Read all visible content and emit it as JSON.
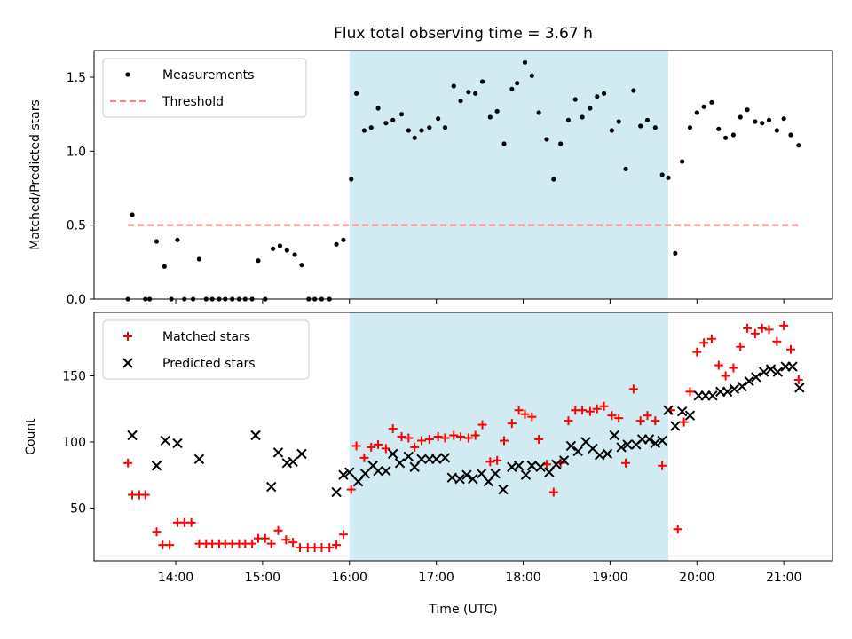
{
  "figure": {
    "title": "Flux total observing time = 3.67 h",
    "xlabel": "Time (UTC)",
    "xticks": [
      "14:00",
      "15:00",
      "16:00",
      "17:00",
      "18:00",
      "19:00",
      "20:00",
      "21:00"
    ],
    "colors": {
      "shade": "#add8e6",
      "matched": "#ff0000",
      "predicted": "#000000",
      "threshold": "#ff7f7f",
      "measurement": "#000000"
    }
  },
  "chart_data": [
    {
      "type": "scatter",
      "panel": "top",
      "ylabel": "Matched/Predicted stars",
      "ylim": [
        0,
        1.68
      ],
      "yticks": [
        "0.0",
        "0.5",
        "1.0",
        "1.5"
      ],
      "xlim": [
        13.06,
        21.56
      ],
      "shaded_interval": [
        16.0,
        19.67
      ],
      "legend": {
        "placement": "upper left",
        "entries": [
          "Measurements",
          "Threshold"
        ]
      },
      "threshold": {
        "value": 0.5,
        "x_start": 13.45,
        "x_end": 21.2
      },
      "series": [
        {
          "name": "Measurements",
          "x": [
            13.45,
            13.5,
            13.65,
            13.7,
            13.78,
            13.87,
            13.95,
            14.02,
            14.1,
            14.2,
            14.27,
            14.35,
            14.42,
            14.5,
            14.57,
            14.65,
            14.73,
            14.8,
            14.88,
            14.95,
            15.03,
            15.12,
            15.2,
            15.28,
            15.37,
            15.45,
            15.53,
            15.6,
            15.68,
            15.77,
            15.85,
            15.93,
            16.02,
            16.08,
            16.17,
            16.25,
            16.33,
            16.42,
            16.5,
            16.6,
            16.68,
            16.75,
            16.83,
            16.92,
            17.02,
            17.1,
            17.2,
            17.28,
            17.37,
            17.45,
            17.53,
            17.62,
            17.7,
            17.78,
            17.87,
            17.93,
            18.02,
            18.1,
            18.18,
            18.27,
            18.35,
            18.43,
            18.52,
            18.6,
            18.68,
            18.77,
            18.85,
            18.93,
            19.02,
            19.1,
            19.18,
            19.27,
            19.35,
            19.43,
            19.52,
            19.6,
            19.67,
            19.75,
            19.83,
            19.92,
            20.0,
            20.08,
            20.17,
            20.25,
            20.33,
            20.42,
            20.5,
            20.58,
            20.67,
            20.75,
            20.83,
            20.92,
            21.0,
            21.08,
            21.17
          ],
          "y": [
            0.0,
            0.57,
            0.0,
            0.0,
            0.39,
            0.22,
            0.0,
            0.4,
            0.0,
            0.0,
            0.27,
            0.0,
            0.0,
            0.0,
            0.0,
            0.0,
            0.0,
            0.0,
            0.0,
            0.26,
            0.0,
            0.34,
            0.36,
            0.33,
            0.3,
            0.23,
            0.0,
            0.0,
            0.0,
            0.0,
            0.37,
            0.4,
            0.81,
            1.39,
            1.14,
            1.16,
            1.29,
            1.19,
            1.21,
            1.25,
            1.14,
            1.09,
            1.14,
            1.16,
            1.22,
            1.16,
            1.44,
            1.34,
            1.4,
            1.39,
            1.47,
            1.23,
            1.27,
            1.05,
            1.42,
            1.46,
            1.6,
            1.51,
            1.26,
            1.08,
            0.81,
            1.05,
            1.21,
            1.35,
            1.23,
            1.29,
            1.37,
            1.39,
            1.14,
            1.2,
            0.88,
            1.41,
            1.17,
            1.21,
            1.16,
            0.84,
            0.82,
            0.31,
            0.93,
            1.16,
            1.26,
            1.3,
            1.33,
            1.15,
            1.09,
            1.11,
            1.23,
            1.28,
            1.2,
            1.19,
            1.21,
            1.14,
            1.22,
            1.11,
            1.04
          ]
        }
      ]
    },
    {
      "type": "scatter",
      "panel": "bottom",
      "ylabel": "Count",
      "ylim": [
        10,
        198
      ],
      "yticks": [
        "50",
        "100",
        "150"
      ],
      "xlim": [
        13.06,
        21.56
      ],
      "shaded_interval": [
        16.0,
        19.67
      ],
      "legend": {
        "placement": "upper left",
        "entries": [
          "Matched stars",
          "Predicted stars"
        ]
      },
      "series": [
        {
          "name": "Matched stars",
          "marker": "+",
          "x": [
            13.45,
            13.5,
            13.58,
            13.65,
            13.78,
            13.85,
            13.93,
            14.02,
            14.1,
            14.18,
            14.27,
            14.35,
            14.42,
            14.5,
            14.57,
            14.65,
            14.73,
            14.8,
            14.88,
            14.95,
            15.03,
            15.1,
            15.18,
            15.27,
            15.35,
            15.43,
            15.52,
            15.6,
            15.68,
            15.77,
            15.85,
            15.93,
            16.02,
            16.08,
            16.17,
            16.25,
            16.33,
            16.42,
            16.5,
            16.6,
            16.68,
            16.75,
            16.83,
            16.92,
            17.02,
            17.1,
            17.2,
            17.28,
            17.37,
            17.45,
            17.53,
            17.62,
            17.7,
            17.78,
            17.87,
            17.95,
            18.02,
            18.1,
            18.18,
            18.27,
            18.35,
            18.43,
            18.52,
            18.6,
            18.68,
            18.77,
            18.85,
            18.93,
            19.02,
            19.1,
            19.18,
            19.27,
            19.35,
            19.43,
            19.52,
            19.6,
            19.7,
            19.78,
            19.85,
            19.92,
            20.0,
            20.08,
            20.17,
            20.25,
            20.33,
            20.42,
            20.5,
            20.58,
            20.67,
            20.75,
            20.83,
            20.92,
            21.0,
            21.08,
            21.17
          ],
          "y": [
            84,
            60,
            60,
            60,
            32,
            22,
            22,
            39,
            39,
            39,
            23,
            23,
            23,
            23,
            23,
            23,
            23,
            23,
            23,
            27,
            27,
            23,
            33,
            26,
            24,
            20,
            20,
            20,
            20,
            20,
            22,
            30,
            64,
            97,
            88,
            96,
            98,
            95,
            110,
            104,
            103,
            96,
            101,
            102,
            104,
            103,
            105,
            104,
            103,
            105,
            113,
            85,
            86,
            101,
            114,
            124,
            121,
            119,
            102,
            83,
            62,
            84,
            116,
            124,
            124,
            123,
            125,
            127,
            120,
            118,
            84,
            140,
            116,
            120,
            116,
            82,
            124,
            34,
            115,
            138,
            168,
            175,
            178,
            158,
            150,
            156,
            172,
            186,
            182,
            186,
            185,
            176,
            188,
            170,
            147
          ]
        },
        {
          "name": "Predicted stars",
          "marker": "x",
          "x": [
            13.5,
            13.78,
            13.88,
            14.02,
            14.27,
            14.92,
            15.1,
            15.18,
            15.28,
            15.35,
            15.45,
            15.85,
            15.93,
            16.0,
            16.1,
            16.18,
            16.27,
            16.33,
            16.42,
            16.5,
            16.58,
            16.68,
            16.75,
            16.83,
            16.92,
            17.0,
            17.1,
            17.18,
            17.27,
            17.35,
            17.42,
            17.52,
            17.6,
            17.68,
            17.77,
            17.87,
            17.95,
            18.03,
            18.1,
            18.2,
            18.3,
            18.38,
            18.47,
            18.55,
            18.63,
            18.72,
            18.8,
            18.88,
            18.97,
            19.05,
            19.13,
            19.2,
            19.3,
            19.37,
            19.45,
            19.52,
            19.6,
            19.67,
            19.75,
            19.83,
            19.92,
            20.02,
            20.1,
            20.18,
            20.27,
            20.35,
            20.43,
            20.52,
            20.6,
            20.68,
            20.77,
            20.85,
            20.93,
            21.02,
            21.1,
            21.18
          ],
          "y": [
            105,
            82,
            101,
            99,
            87,
            105,
            66,
            92,
            84,
            85,
            91,
            62,
            75,
            77,
            70,
            76,
            82,
            78,
            78,
            91,
            84,
            89,
            81,
            87,
            87,
            87,
            88,
            73,
            72,
            75,
            72,
            76,
            70,
            76,
            64,
            81,
            82,
            75,
            82,
            81,
            77,
            83,
            86,
            97,
            93,
            100,
            95,
            90,
            91,
            105,
            96,
            98,
            98,
            102,
            102,
            99,
            101,
            124,
            112,
            123,
            120,
            135,
            135,
            135,
            138,
            138,
            140,
            142,
            146,
            149,
            153,
            155,
            153,
            157,
            157,
            141
          ]
        }
      ]
    }
  ]
}
